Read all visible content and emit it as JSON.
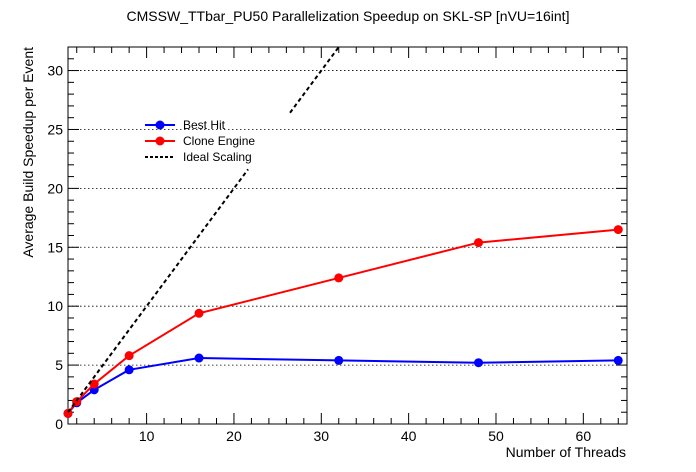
{
  "chart_data": {
    "type": "line",
    "title": "CMSSW_TTbar_PU50 Parallelization Speedup on SKL-SP [nVU=16int]",
    "xlabel": "Number of Threads",
    "ylabel": "Average Build Speedup per Event",
    "xlim": [
      1,
      65
    ],
    "ylim": [
      0,
      32
    ],
    "xticks": [
      10,
      20,
      30,
      40,
      50,
      60
    ],
    "yticks": [
      0,
      5,
      10,
      15,
      20,
      25,
      30
    ],
    "grid": "horizontal dotted",
    "legend_position": "top-left",
    "series": [
      {
        "name": "Best Hit",
        "color": "#0000ff",
        "marker": "circle",
        "x": [
          1,
          2,
          4,
          8,
          16,
          32,
          48,
          64
        ],
        "y": [
          0.9,
          1.8,
          2.9,
          4.6,
          5.6,
          5.4,
          5.2,
          5.4
        ]
      },
      {
        "name": "Clone Engine",
        "color": "#ff0000",
        "marker": "circle",
        "x": [
          1,
          2,
          4,
          8,
          16,
          32,
          48,
          64
        ],
        "y": [
          0.9,
          1.9,
          3.4,
          5.8,
          9.4,
          12.4,
          15.4,
          16.5
        ]
      },
      {
        "name": "Ideal Scaling",
        "color": "#000000",
        "marker": "none",
        "dashed": true,
        "x": [
          1,
          32
        ],
        "y": [
          1,
          32
        ]
      }
    ]
  }
}
